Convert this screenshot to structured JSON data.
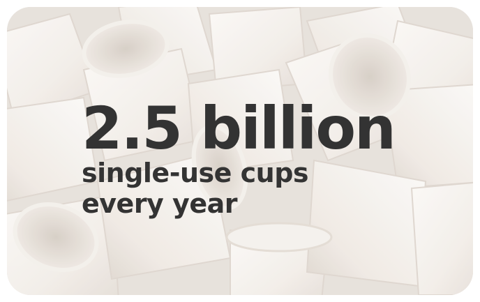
{
  "headline": "2.5 billion",
  "subline": {
    "line1": "single-use cups",
    "line2": "every year"
  },
  "colors": {
    "text": "#333333",
    "background": "#ebe6e1",
    "cup": "#f7f4f0",
    "cup_shadow": "#d9d2ca"
  }
}
